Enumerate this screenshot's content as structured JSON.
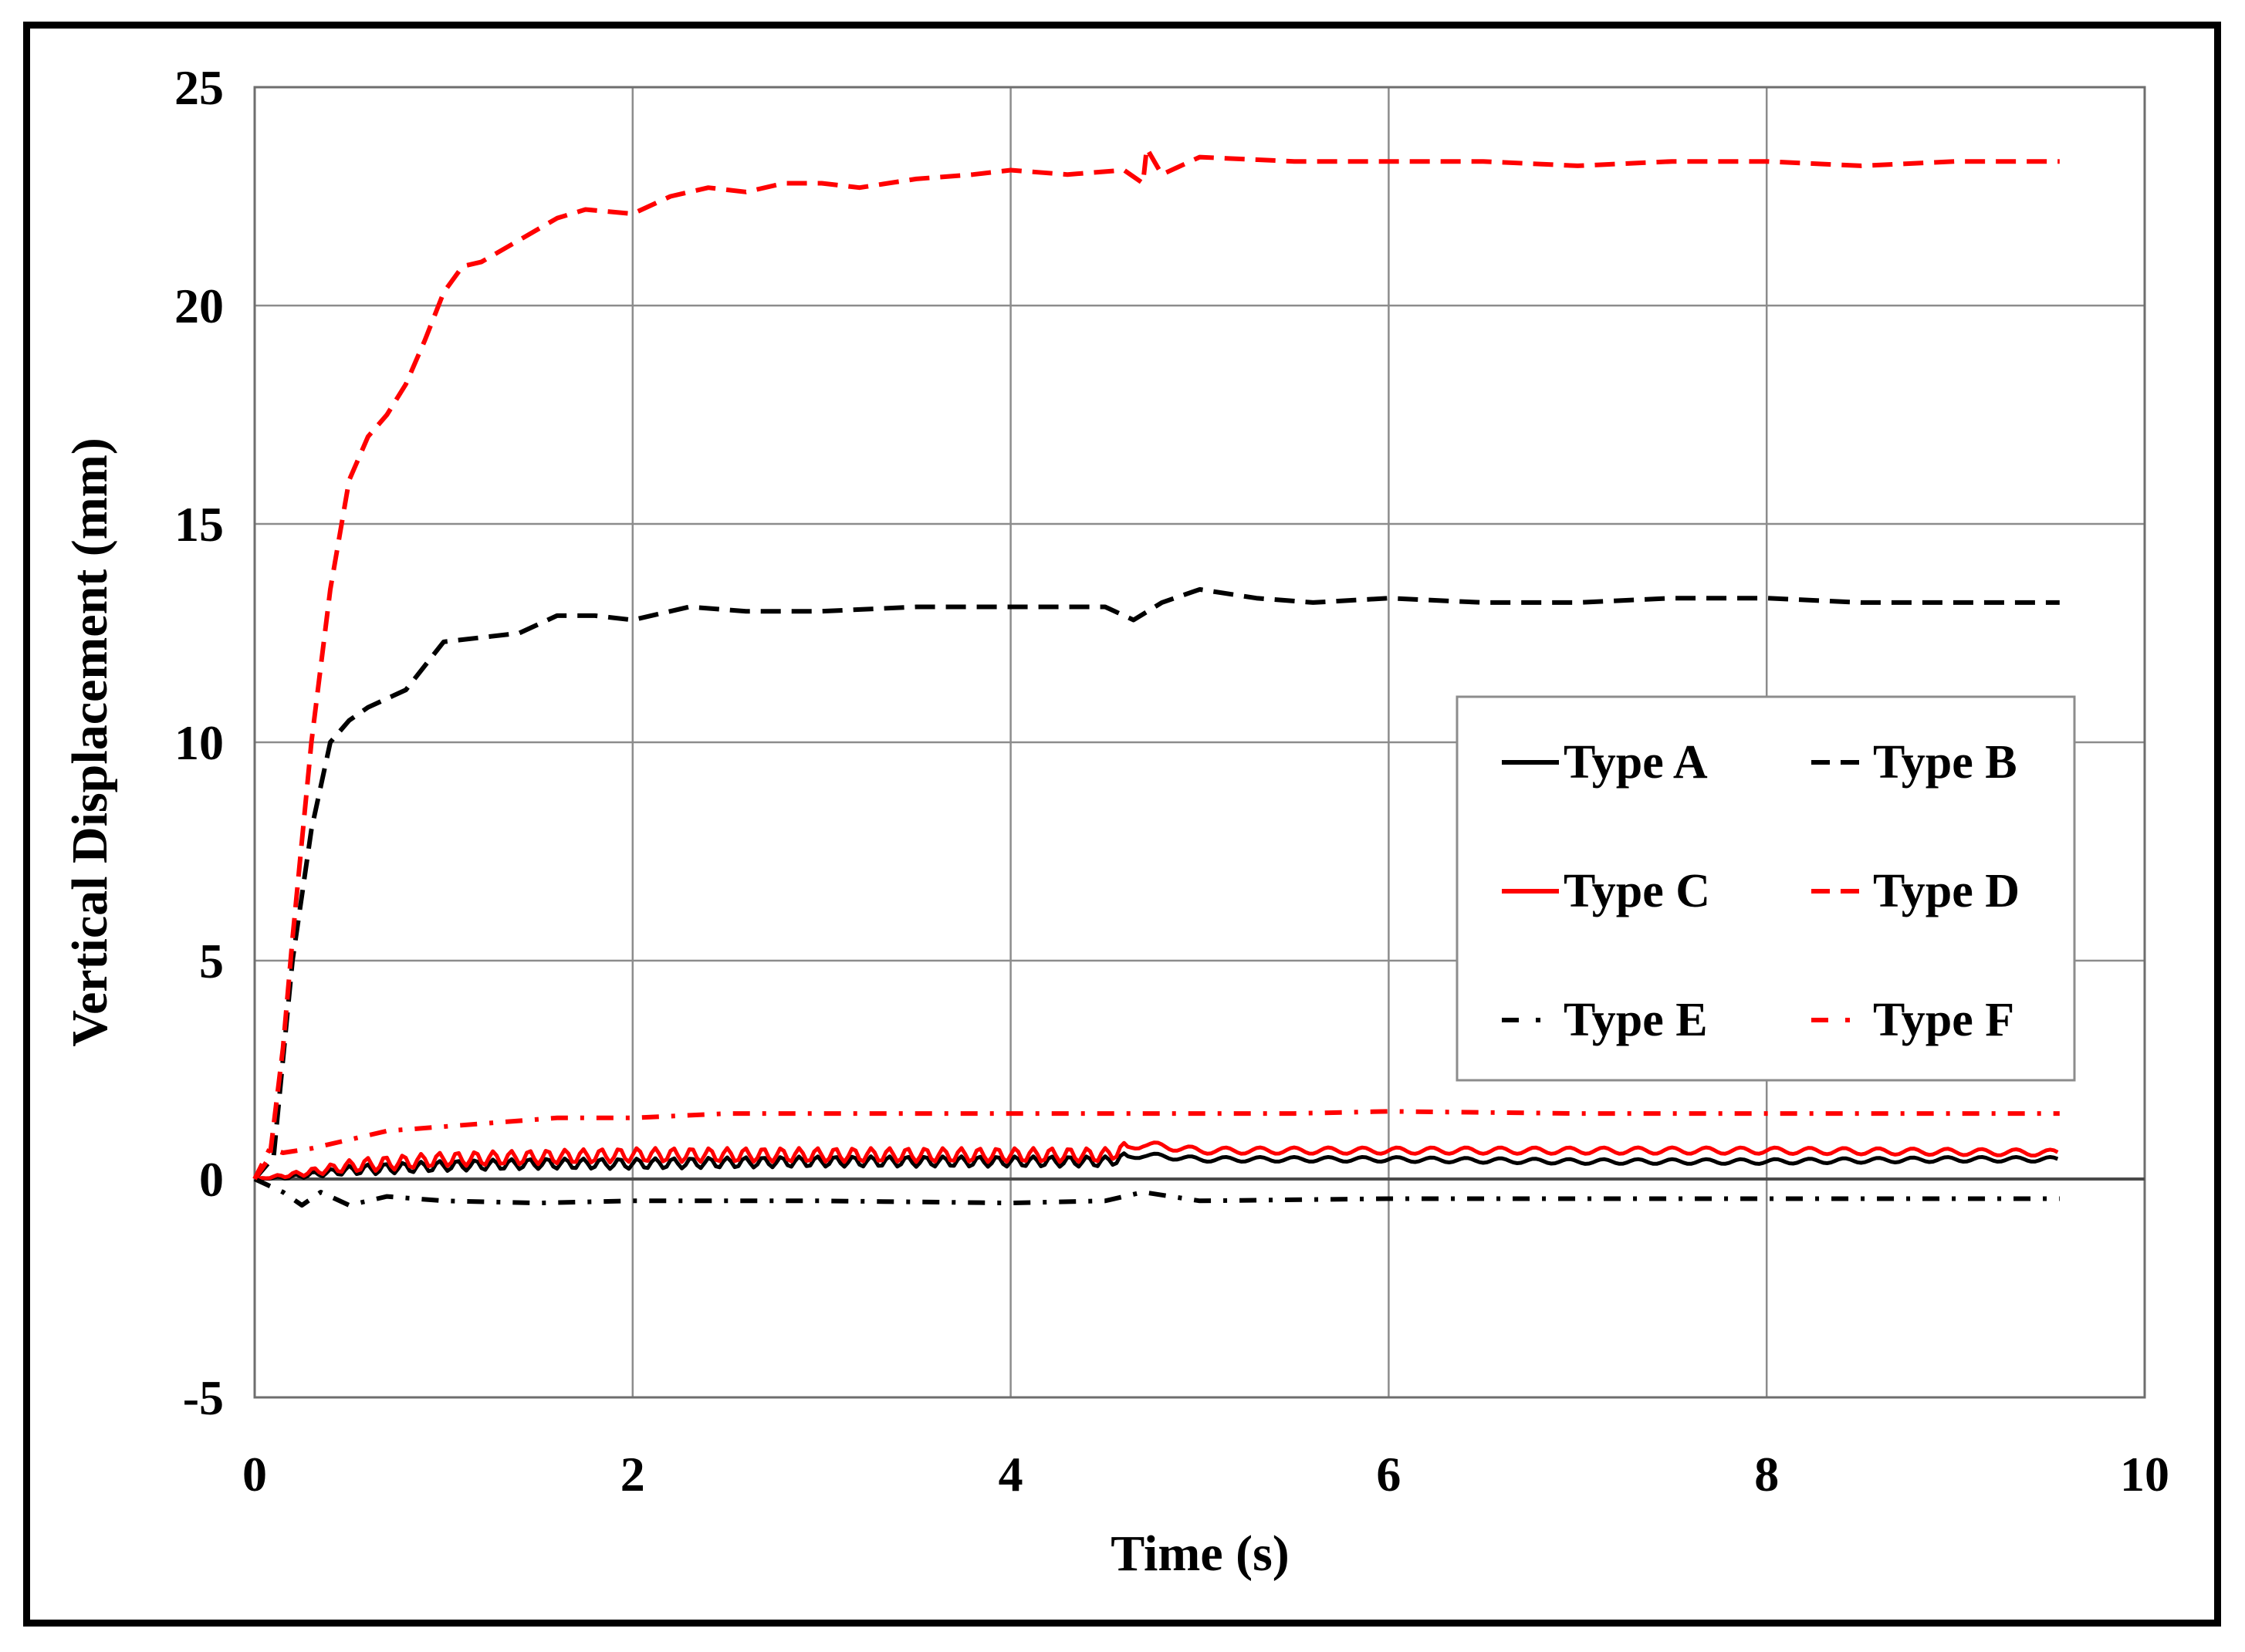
{
  "chart_data": {
    "type": "line",
    "title": "",
    "xlabel": "Time (s)",
    "ylabel": "Vertical Displacement (mm)",
    "xlim": [
      0,
      10
    ],
    "ylim": [
      -5,
      25
    ],
    "x_ticks": [
      "0",
      "2",
      "4",
      "6",
      "8",
      "10"
    ],
    "y_ticks": [
      "25",
      "20",
      "15",
      "10",
      "5",
      "0",
      "-5"
    ],
    "grid": true,
    "legend_position": "center-right (inside plot, 2 columns)",
    "series": [
      {
        "name": "Type A",
        "color": "#000000",
        "style": "solid",
        "x": [
          0,
          0.2,
          0.5,
          1.0,
          1.5,
          2.0,
          3.0,
          4.0,
          4.5,
          4.7,
          5.0,
          6.0,
          7.0,
          8.0,
          9.0,
          9.55
        ],
        "y": [
          0,
          0.05,
          0.2,
          0.3,
          0.35,
          0.35,
          0.4,
          0.4,
          0.4,
          0.55,
          0.45,
          0.45,
          0.4,
          0.4,
          0.45,
          0.45
        ],
        "oscillation_amplitude": 0.12
      },
      {
        "name": "Type B",
        "color": "#000000",
        "style": "dashed",
        "x": [
          0,
          0.1,
          0.2,
          0.3,
          0.4,
          0.5,
          0.6,
          0.8,
          1.0,
          1.2,
          1.4,
          1.6,
          1.8,
          2.0,
          2.3,
          2.6,
          3.0,
          3.5,
          4.0,
          4.5,
          4.65,
          4.8,
          5.0,
          5.3,
          5.6,
          6.0,
          6.5,
          7.0,
          7.5,
          8.0,
          8.5,
          9.0,
          9.55
        ],
        "y": [
          0,
          0.5,
          5.0,
          8.0,
          10.0,
          10.5,
          10.8,
          11.2,
          12.3,
          12.4,
          12.5,
          12.9,
          12.9,
          12.8,
          13.1,
          13.0,
          13.0,
          13.1,
          13.1,
          13.1,
          12.8,
          13.2,
          13.5,
          13.3,
          13.2,
          13.3,
          13.2,
          13.2,
          13.3,
          13.3,
          13.2,
          13.2,
          13.2
        ]
      },
      {
        "name": "Type C",
        "color": "#ff0000",
        "style": "solid",
        "x": [
          0,
          0.2,
          0.5,
          1.0,
          1.5,
          2.0,
          3.0,
          4.0,
          4.5,
          4.7,
          5.0,
          6.0,
          7.0,
          8.0,
          9.0,
          9.55
        ],
        "y": [
          0,
          0.1,
          0.3,
          0.45,
          0.5,
          0.55,
          0.55,
          0.55,
          0.55,
          0.8,
          0.65,
          0.65,
          0.65,
          0.65,
          0.62,
          0.6
        ],
        "oscillation_amplitude": 0.16
      },
      {
        "name": "Type D",
        "color": "#ff0000",
        "style": "dashed",
        "x": [
          0,
          0.08,
          0.15,
          0.2,
          0.3,
          0.4,
          0.5,
          0.6,
          0.7,
          0.8,
          0.9,
          1.0,
          1.1,
          1.2,
          1.4,
          1.6,
          1.75,
          2.0,
          2.2,
          2.4,
          2.6,
          2.8,
          3.0,
          3.2,
          3.5,
          3.8,
          4.0,
          4.3,
          4.6,
          4.7,
          4.72,
          4.8,
          5.0,
          5.5,
          6.0,
          6.5,
          7.0,
          7.5,
          8.0,
          8.5,
          9.0,
          9.55
        ],
        "y": [
          0,
          0.5,
          3.0,
          5.5,
          10.0,
          13.5,
          16.0,
          17.0,
          17.5,
          18.2,
          19.2,
          20.3,
          20.9,
          21.0,
          21.5,
          22.0,
          22.2,
          22.1,
          22.5,
          22.7,
          22.6,
          22.8,
          22.8,
          22.7,
          22.9,
          23.0,
          23.1,
          23.0,
          23.1,
          22.8,
          23.6,
          23.0,
          23.4,
          23.3,
          23.3,
          23.3,
          23.2,
          23.3,
          23.3,
          23.2,
          23.3,
          23.3
        ]
      },
      {
        "name": "Type E",
        "color": "#000000",
        "style": "dash-dot",
        "x": [
          0,
          0.15,
          0.25,
          0.35,
          0.5,
          0.7,
          1.0,
          1.5,
          2.0,
          3.0,
          4.0,
          4.5,
          4.7,
          5.0,
          6.0,
          7.0,
          8.0,
          9.0,
          9.55
        ],
        "y": [
          0,
          -0.3,
          -0.6,
          -0.3,
          -0.6,
          -0.4,
          -0.5,
          -0.55,
          -0.5,
          -0.5,
          -0.55,
          -0.5,
          -0.3,
          -0.5,
          -0.45,
          -0.45,
          -0.45,
          -0.45,
          -0.45
        ]
      },
      {
        "name": "Type F",
        "color": "#ff0000",
        "style": "dash-dot",
        "x": [
          0,
          0.08,
          0.15,
          0.3,
          0.5,
          0.7,
          1.0,
          1.3,
          1.6,
          2.0,
          2.5,
          3.0,
          3.5,
          4.0,
          4.5,
          5.0,
          5.5,
          6.0,
          7.0,
          8.0,
          9.0,
          9.55
        ],
        "y": [
          0,
          0.7,
          0.6,
          0.7,
          0.9,
          1.1,
          1.2,
          1.3,
          1.4,
          1.4,
          1.5,
          1.5,
          1.5,
          1.5,
          1.5,
          1.5,
          1.5,
          1.55,
          1.5,
          1.5,
          1.5,
          1.5
        ]
      }
    ]
  },
  "legend": {
    "items": [
      {
        "label": "Type A",
        "color": "#000000",
        "style": "solid"
      },
      {
        "label": "Type B",
        "color": "#000000",
        "style": "dashed"
      },
      {
        "label": "Type C",
        "color": "#ff0000",
        "style": "solid"
      },
      {
        "label": "Type D",
        "color": "#ff0000",
        "style": "dashed"
      },
      {
        "label": "Type E",
        "color": "#000000",
        "style": "dash-dot"
      },
      {
        "label": "Type F",
        "color": "#ff0000",
        "style": "dash-dot"
      }
    ]
  },
  "colors": {
    "black": "#000000",
    "red": "#ff0000",
    "grid": "#8c8c8c",
    "axis": "#6e6e6e"
  }
}
